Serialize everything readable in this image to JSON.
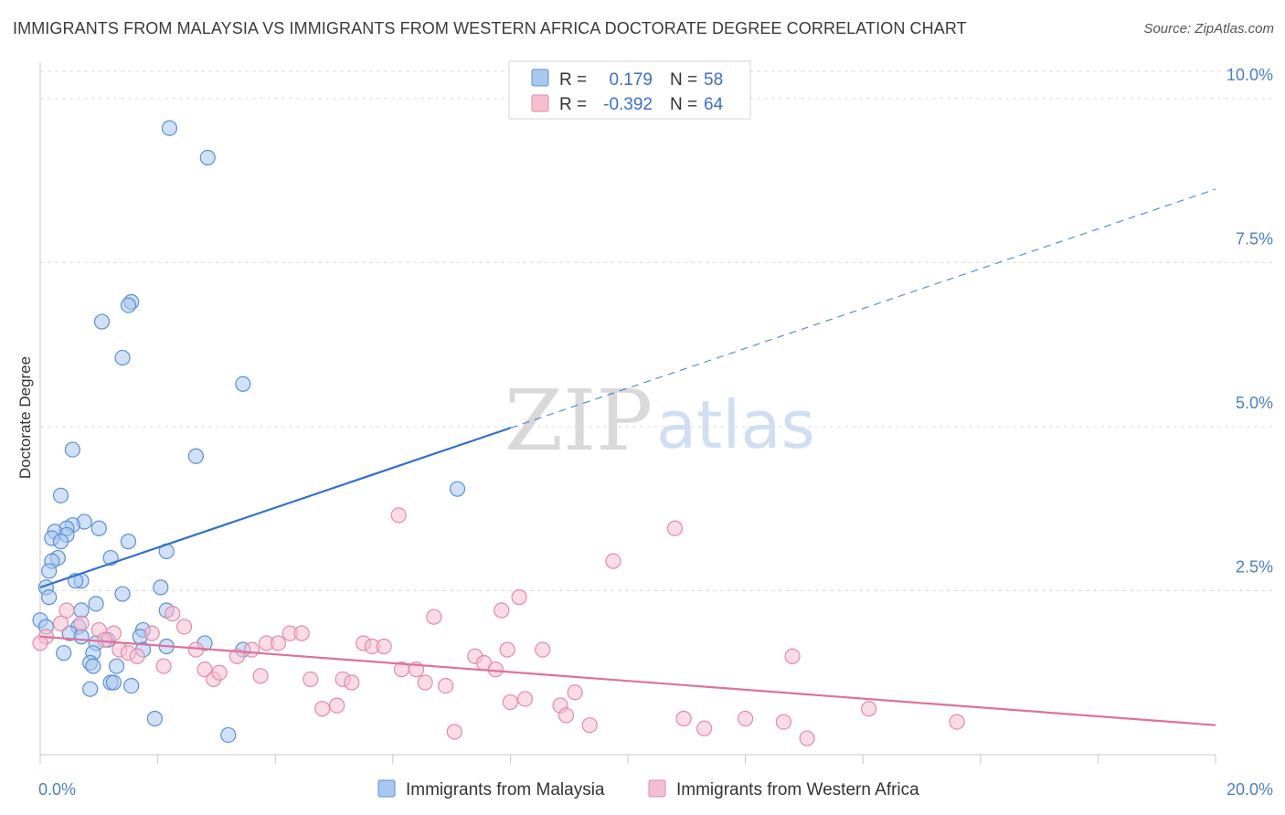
{
  "title": "IMMIGRANTS FROM MALAYSIA VS IMMIGRANTS FROM WESTERN AFRICA DOCTORATE DEGREE CORRELATION CHART",
  "source": "Source: ZipAtlas.com",
  "watermark": {
    "zip": "ZIP",
    "atlas": "atlas"
  },
  "colors": {
    "blue_fill": "#a9c8f0",
    "blue_stroke": "#5b8fd6",
    "blue_line": "#2f6fcf",
    "pink_fill": "#f6bfd0",
    "pink_stroke": "#e38aa8",
    "pink_line": "#e0709a",
    "grid": "#dcdcdc",
    "axis_text": "#4a7fc9"
  },
  "chart_data": {
    "type": "scatter",
    "title": "IMMIGRANTS FROM MALAYSIA VS IMMIGRANTS FROM WESTERN AFRICA DOCTORATE DEGREE CORRELATION CHART",
    "xlabel": "",
    "ylabel": "Doctorate Degree",
    "xlim": [
      0,
      20
    ],
    "ylim": [
      0,
      10.5
    ],
    "x_tick_labels": [
      {
        "value": 0,
        "label": "0.0%"
      },
      {
        "value": 20,
        "label": "20.0%"
      }
    ],
    "y_tick_labels": [
      {
        "value": 2.5,
        "label": "2.5%"
      },
      {
        "value": 5.0,
        "label": "5.0%"
      },
      {
        "value": 7.5,
        "label": "7.5%"
      },
      {
        "value": 10.0,
        "label": "10.0%"
      }
    ],
    "grid": "horizontal dashed",
    "legend_position": "top-center",
    "stats": [
      {
        "r_label": "R =",
        "r": "0.179",
        "n_label": "N =",
        "n": "58"
      },
      {
        "r_label": "R =",
        "r": "-0.392",
        "n_label": "N =",
        "n": "64"
      }
    ],
    "series": [
      {
        "name": "Immigrants from Malaysia",
        "color": "#a9c8f0",
        "trend": {
          "x0": 0,
          "y0": 2.55,
          "x1": 8,
          "y1": 4.98,
          "dash_to_x": 20,
          "dash_to_y": 8.62
        },
        "points": [
          [
            2.2,
            9.55
          ],
          [
            2.85,
            9.1
          ],
          [
            1.55,
            6.9
          ],
          [
            1.5,
            6.85
          ],
          [
            1.05,
            6.6
          ],
          [
            1.4,
            6.05
          ],
          [
            3.45,
            5.65
          ],
          [
            0.55,
            4.65
          ],
          [
            2.65,
            4.55
          ],
          [
            7.1,
            4.05
          ],
          [
            0.35,
            3.95
          ],
          [
            0.75,
            3.55
          ],
          [
            0.55,
            3.5
          ],
          [
            0.45,
            3.45
          ],
          [
            1.0,
            3.45
          ],
          [
            0.25,
            3.4
          ],
          [
            0.45,
            3.35
          ],
          [
            0.2,
            3.3
          ],
          [
            0.35,
            3.25
          ],
          [
            1.5,
            3.25
          ],
          [
            2.15,
            3.1
          ],
          [
            0.3,
            3.0
          ],
          [
            1.2,
            3.0
          ],
          [
            0.2,
            2.95
          ],
          [
            0.15,
            2.8
          ],
          [
            0.7,
            2.65
          ],
          [
            0.6,
            2.65
          ],
          [
            0.1,
            2.55
          ],
          [
            2.05,
            2.55
          ],
          [
            1.4,
            2.45
          ],
          [
            0.15,
            2.4
          ],
          [
            0.95,
            2.3
          ],
          [
            0.7,
            2.2
          ],
          [
            2.15,
            2.2
          ],
          [
            0.0,
            2.05
          ],
          [
            0.1,
            1.95
          ],
          [
            0.65,
            1.95
          ],
          [
            1.75,
            1.9
          ],
          [
            0.5,
            1.85
          ],
          [
            1.7,
            1.8
          ],
          [
            0.7,
            1.8
          ],
          [
            1.15,
            1.75
          ],
          [
            0.95,
            1.7
          ],
          [
            2.8,
            1.7
          ],
          [
            2.15,
            1.65
          ],
          [
            1.75,
            1.6
          ],
          [
            3.45,
            1.6
          ],
          [
            0.4,
            1.55
          ],
          [
            0.9,
            1.55
          ],
          [
            0.85,
            1.4
          ],
          [
            0.9,
            1.35
          ],
          [
            1.3,
            1.35
          ],
          [
            1.2,
            1.1
          ],
          [
            1.25,
            1.1
          ],
          [
            1.55,
            1.05
          ],
          [
            0.85,
            1.0
          ],
          [
            1.95,
            0.55
          ],
          [
            3.2,
            0.3
          ]
        ]
      },
      {
        "name": "Immigrants from Western Africa",
        "color": "#f6bfd0",
        "trend": {
          "x0": 0,
          "y0": 1.8,
          "x1": 20,
          "y1": 0.45
        },
        "points": [
          [
            0.1,
            1.8
          ],
          [
            0.0,
            1.7
          ],
          [
            0.45,
            2.2
          ],
          [
            0.35,
            2.0
          ],
          [
            0.7,
            2.0
          ],
          [
            1.25,
            1.85
          ],
          [
            1.0,
            1.9
          ],
          [
            1.1,
            1.75
          ],
          [
            1.9,
            1.85
          ],
          [
            2.25,
            2.15
          ],
          [
            2.45,
            1.95
          ],
          [
            1.35,
            1.6
          ],
          [
            1.5,
            1.55
          ],
          [
            1.65,
            1.5
          ],
          [
            2.1,
            1.35
          ],
          [
            2.65,
            1.6
          ],
          [
            2.8,
            1.3
          ],
          [
            2.95,
            1.15
          ],
          [
            3.05,
            1.25
          ],
          [
            3.35,
            1.5
          ],
          [
            3.6,
            1.6
          ],
          [
            3.75,
            1.2
          ],
          [
            3.85,
            1.7
          ],
          [
            4.05,
            1.7
          ],
          [
            4.25,
            1.85
          ],
          [
            4.45,
            1.85
          ],
          [
            4.6,
            1.15
          ],
          [
            4.8,
            0.7
          ],
          [
            5.05,
            0.75
          ],
          [
            5.15,
            1.15
          ],
          [
            5.3,
            1.1
          ],
          [
            5.5,
            1.7
          ],
          [
            5.65,
            1.65
          ],
          [
            5.85,
            1.65
          ],
          [
            6.15,
            1.3
          ],
          [
            6.1,
            3.65
          ],
          [
            6.4,
            1.3
          ],
          [
            6.55,
            1.1
          ],
          [
            6.7,
            2.1
          ],
          [
            6.9,
            1.05
          ],
          [
            7.05,
            0.35
          ],
          [
            7.4,
            1.5
          ],
          [
            7.55,
            1.4
          ],
          [
            7.75,
            1.3
          ],
          [
            7.85,
            2.2
          ],
          [
            7.95,
            1.6
          ],
          [
            8.0,
            0.8
          ],
          [
            8.15,
            2.4
          ],
          [
            8.25,
            0.85
          ],
          [
            8.55,
            1.6
          ],
          [
            8.85,
            0.75
          ],
          [
            8.95,
            0.6
          ],
          [
            9.1,
            0.95
          ],
          [
            9.35,
            0.45
          ],
          [
            9.75,
            2.95
          ],
          [
            10.8,
            3.45
          ],
          [
            10.95,
            0.55
          ],
          [
            11.3,
            0.4
          ],
          [
            12.0,
            0.55
          ],
          [
            12.65,
            0.5
          ],
          [
            12.8,
            1.5
          ],
          [
            13.05,
            0.25
          ],
          [
            14.1,
            0.7
          ],
          [
            15.6,
            0.5
          ]
        ]
      }
    ]
  }
}
